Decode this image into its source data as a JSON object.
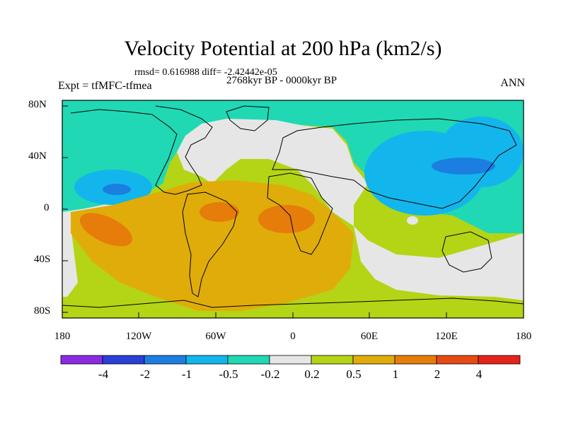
{
  "title": "Velocity Potential at 200 hPa (km2/s)",
  "stats": "rmsd= 0.616988 diff= -2.42442e-05",
  "period": "2768kyr BP - 0000kyr BP",
  "experiment": "Expt = tfMFC-tfmea",
  "season": "ANN",
  "lat_labels": [
    "80N",
    "40N",
    "0",
    "40S",
    "80S"
  ],
  "lon_labels": [
    "180",
    "120W",
    "60W",
    "0",
    "60E",
    "120E",
    "180"
  ],
  "colorbar": {
    "labels": [
      "-4",
      "-2",
      "-1",
      "-0.5",
      "-0.2",
      "0.2",
      "0.5",
      "1",
      "2",
      "4"
    ],
    "colors": [
      "#8a2be2",
      "#2a3fd6",
      "#1c7ee0",
      "#12b6ec",
      "#20d8b4",
      "#e6e6e6",
      "#b4d416",
      "#e0ac0a",
      "#e67c0a",
      "#e64a14",
      "#e4241c"
    ]
  },
  "field_colors": {
    "cold2": "#1c7ee0",
    "cold1": "#12b6ec",
    "cold0": "#20d8b4",
    "neutral": "#e6e6e6",
    "warm0": "#b4d416",
    "warm1": "#e0ac0a",
    "warm2": "#e67c0a"
  }
}
